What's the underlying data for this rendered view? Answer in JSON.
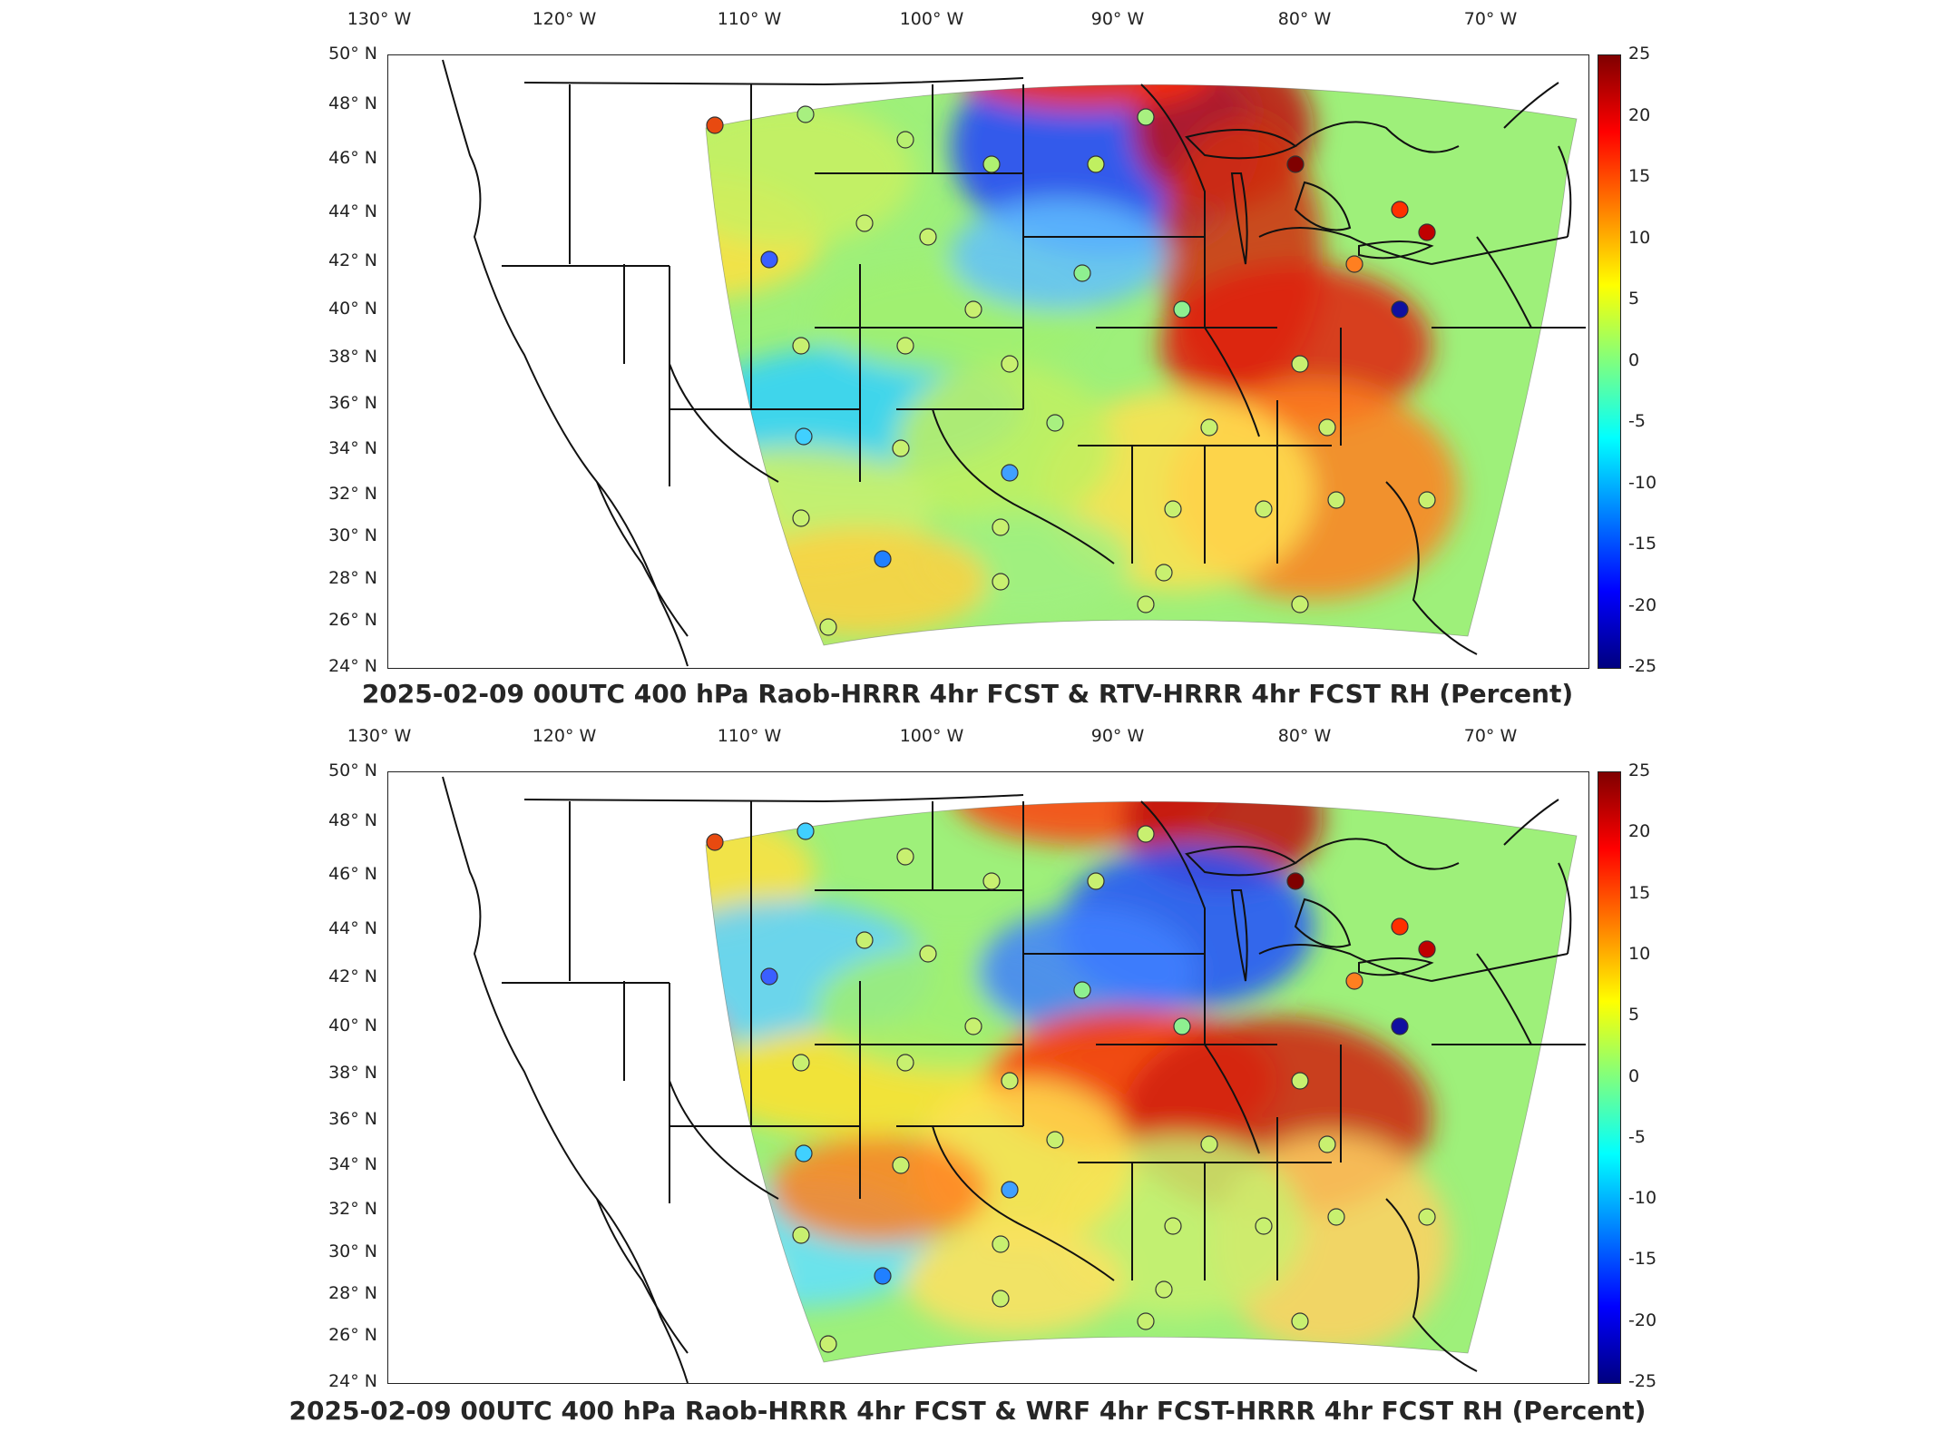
{
  "panels": [
    {
      "title": "2025-02-09 00UTC 400 hPa Raob-HRRR 4hr FCST & RTV-HRRR 4hr FCST RH (Percent)",
      "variant": "rtv"
    },
    {
      "title": "2025-02-09 00UTC 400 hPa Raob-HRRR 4hr FCST & WRF 4hr FCST-HRRR 4hr FCST RH (Percent)",
      "variant": "wrf"
    }
  ],
  "lon_labels": [
    "130° W",
    "120° W",
    "110° W",
    "100° W",
    "90° W",
    "80° W",
    "70° W"
  ],
  "lat_labels": [
    "50° N",
    "48° N",
    "46° N",
    "44° N",
    "42° N",
    "40° N",
    "38° N",
    "36° N",
    "34° N",
    "32° N",
    "30° N",
    "28° N",
    "26° N",
    "24° N"
  ],
  "colorbar": {
    "ticks": [
      "25",
      "20",
      "15",
      "10",
      "5",
      "0",
      "-5",
      "-10",
      "-15",
      "-20",
      "-25"
    ],
    "range": [
      -25,
      25
    ],
    "colors": [
      "#00007f",
      "#0000ff",
      "#007fff",
      "#00ffff",
      "#7fff7f",
      "#ffff00",
      "#ff7f00",
      "#ff0000",
      "#7f0000"
    ]
  }
}
